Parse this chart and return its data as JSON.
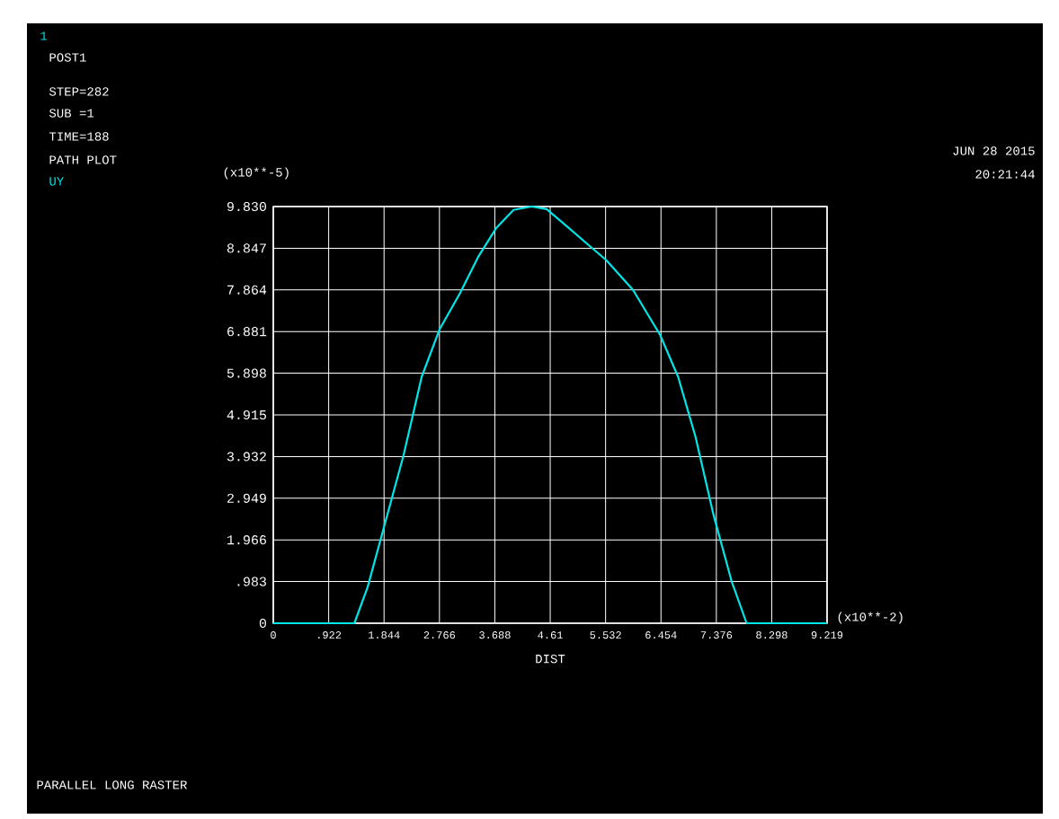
{
  "chart_data": {
    "type": "line",
    "title": "PARALLEL LONG RASTER",
    "xlabel": "DIST",
    "ylabel": "(x10**-5)",
    "annotations": [
      "1",
      "POST1",
      "STEP=282",
      "SUB =1",
      "TIME=188",
      "PATH PLOT",
      "JUN 28 2015",
      "20:21:44",
      "(x10**-2)"
    ],
    "series": [
      {
        "name": "UY",
        "color": "#00e5e5",
        "x": [
          0,
          1.35,
          1.57,
          1.87,
          2.17,
          2.47,
          2.77,
          3.11,
          3.41,
          3.71,
          4.0,
          4.3,
          4.55,
          4.85,
          5.25,
          5.54,
          5.99,
          6.44,
          6.74,
          7.03,
          7.33,
          7.63,
          7.88,
          9.219
        ],
        "values": [
          0,
          0,
          0.85,
          2.41,
          3.97,
          5.81,
          6.94,
          7.79,
          8.64,
          9.32,
          9.75,
          9.83,
          9.77,
          9.41,
          8.92,
          8.57,
          7.86,
          6.8,
          5.81,
          4.39,
          2.55,
          0.99,
          0,
          0
        ]
      }
    ],
    "xlim": [
      0,
      9.219
    ],
    "ylim": [
      0,
      9.83
    ],
    "xticks": [
      0,
      {
        "value": 0.922,
        "label": ".922"
      },
      1.844,
      2.766,
      3.688,
      4.61,
      5.532,
      6.454,
      7.376,
      8.298,
      9.219
    ],
    "yticks": [
      0,
      {
        "value": 0.983,
        "label": ".983"
      },
      1.966,
      2.949,
      3.932,
      4.915,
      5.898,
      6.881,
      7.864,
      8.847,
      {
        "value": 9.83,
        "label": "9.830"
      }
    ],
    "grid": true,
    "legend": "top left",
    "line_style": "solid",
    "marker": "none"
  }
}
